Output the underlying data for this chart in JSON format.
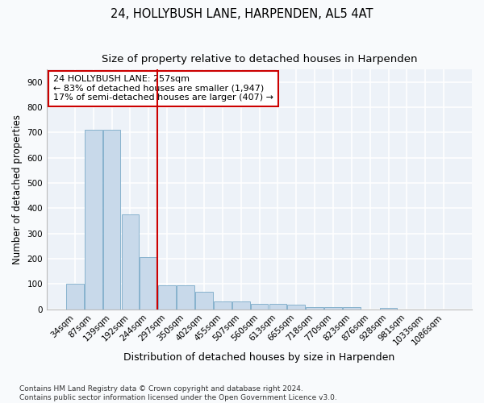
{
  "title": "24, HOLLYBUSH LANE, HARPENDEN, AL5 4AT",
  "subtitle": "Size of property relative to detached houses in Harpenden",
  "xlabel": "Distribution of detached houses by size in Harpenden",
  "ylabel": "Number of detached properties",
  "categories": [
    "34sqm",
    "87sqm",
    "139sqm",
    "192sqm",
    "244sqm",
    "297sqm",
    "350sqm",
    "402sqm",
    "455sqm",
    "507sqm",
    "560sqm",
    "613sqm",
    "665sqm",
    "718sqm",
    "770sqm",
    "823sqm",
    "876sqm",
    "928sqm",
    "981sqm",
    "1033sqm",
    "1086sqm"
  ],
  "values": [
    100,
    710,
    710,
    375,
    205,
    95,
    95,
    70,
    30,
    30,
    20,
    20,
    18,
    8,
    8,
    10,
    0,
    5,
    0,
    0,
    0
  ],
  "bar_color": "#c8d9ea",
  "bar_edge_color": "#7aaac8",
  "vline_color": "#cc0000",
  "vline_x_index": 4,
  "annotation_lines": [
    "24 HOLLYBUSH LANE: 257sqm",
    "← 83% of detached houses are smaller (1,947)",
    "17% of semi-detached houses are larger (407) →"
  ],
  "annotation_box_color": "#cc0000",
  "ylim": [
    0,
    950
  ],
  "yticks": [
    0,
    100,
    200,
    300,
    400,
    500,
    600,
    700,
    800,
    900
  ],
  "bg_color": "#edf2f8",
  "grid_color": "#ffffff",
  "fig_bg_color": "#f8fafc",
  "footnote": "Contains HM Land Registry data © Crown copyright and database right 2024.\nContains public sector information licensed under the Open Government Licence v3.0.",
  "title_fontsize": 10.5,
  "subtitle_fontsize": 9.5,
  "xlabel_fontsize": 9,
  "ylabel_fontsize": 8.5,
  "tick_fontsize": 7.5,
  "annot_fontsize": 8,
  "footnote_fontsize": 6.5
}
